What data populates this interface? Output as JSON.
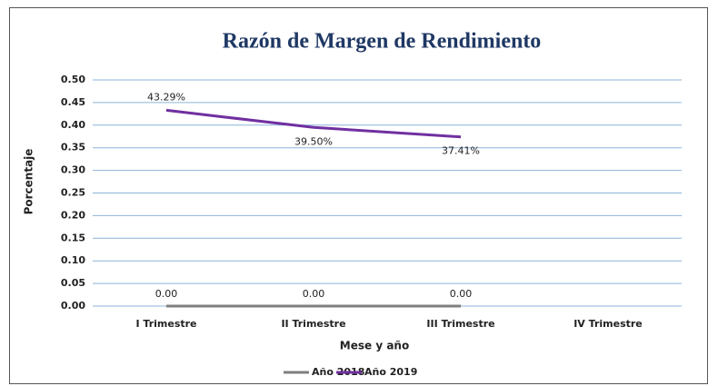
{
  "chart_data": {
    "type": "line",
    "title": "Razón de Margen de Rendimiento",
    "x_label": "Mese y año",
    "y_label": "Porcentaje",
    "categories": [
      "I Trimestre",
      "II Trimestre",
      "III Trimestre",
      "IV Trimestre"
    ],
    "series": [
      {
        "name": "Año 2018",
        "color": "#7f7f7f",
        "values": [
          0,
          0,
          0,
          null
        ],
        "value_labels": [
          "0.00",
          "0.00",
          "0.00",
          null
        ]
      },
      {
        "name": "Año 2019",
        "color": "#7030a0",
        "values": [
          0.4329,
          0.395,
          0.3741,
          null
        ],
        "value_labels": [
          "43.29%",
          "39.50%",
          "37.41%",
          null
        ]
      }
    ],
    "ylim": [
      0,
      0.5
    ],
    "yticks": [
      {
        "value": 0,
        "label": "0.00"
      },
      {
        "value": 0.05,
        "label": "0.05"
      },
      {
        "value": 0.1,
        "label": "0.10"
      },
      {
        "value": 0.15,
        "label": "0.15"
      },
      {
        "value": 0.2,
        "label": "0.20"
      },
      {
        "value": 0.25,
        "label": "0.25"
      },
      {
        "value": 0.3,
        "label": "0.30"
      },
      {
        "value": 0.35,
        "label": "0.35"
      },
      {
        "value": 0.4,
        "label": "0.40"
      },
      {
        "value": 0.45,
        "label": "0.45"
      },
      {
        "value": 0.5,
        "label": "0.50"
      }
    ],
    "grid": true,
    "legend": "bottom"
  }
}
